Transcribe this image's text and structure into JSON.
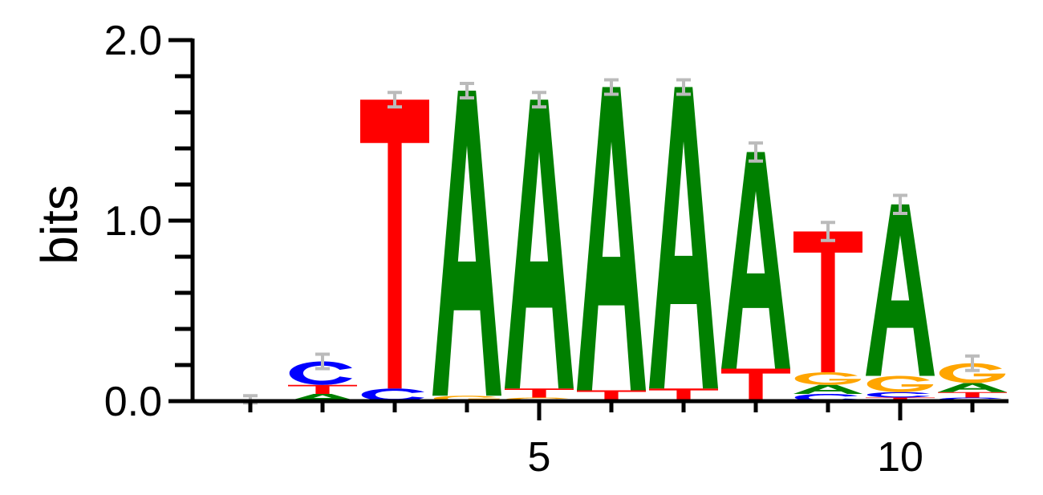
{
  "chart_data": {
    "type": "sequence-logo",
    "ylabel": "bits",
    "ylim": [
      0,
      2.0
    ],
    "y_ticks": [
      0.0,
      1.0,
      2.0
    ],
    "y_tick_labels": [
      "0.0",
      "1.0",
      "2.0"
    ],
    "x_range": [
      1,
      11
    ],
    "x_ticks": [
      5,
      10
    ],
    "x_tick_labels": [
      "5",
      "10"
    ],
    "x_minor_ticks": [
      1,
      2,
      3,
      4,
      5,
      6,
      7,
      8,
      9,
      10,
      11
    ],
    "colors": {
      "A": "#008000",
      "C": "#0000ff",
      "G": "#ffa500",
      "T": "#ff0000",
      "error_bar": "#bbbbbb"
    },
    "positions": [
      {
        "pos": 1,
        "letters": [
          {
            "base": "T",
            "height": 0.01
          }
        ],
        "error": 0.02
      },
      {
        "pos": 2,
        "letters": [
          {
            "base": "A",
            "height": 0.04
          },
          {
            "base": "T",
            "height": 0.05
          },
          {
            "base": "C",
            "height": 0.13
          }
        ],
        "error": 0.04
      },
      {
        "pos": 3,
        "letters": [
          {
            "base": "C",
            "height": 0.07
          },
          {
            "base": "T",
            "height": 1.6
          }
        ],
        "error": 0.04
      },
      {
        "pos": 4,
        "letters": [
          {
            "base": "G",
            "height": 0.03
          },
          {
            "base": "A",
            "height": 1.69
          }
        ],
        "error": 0.04
      },
      {
        "pos": 5,
        "letters": [
          {
            "base": "G",
            "height": 0.02
          },
          {
            "base": "T",
            "height": 0.05
          },
          {
            "base": "A",
            "height": 1.6
          }
        ],
        "error": 0.04
      },
      {
        "pos": 6,
        "letters": [
          {
            "base": "T",
            "height": 0.06
          },
          {
            "base": "A",
            "height": 1.68
          }
        ],
        "error": 0.04
      },
      {
        "pos": 7,
        "letters": [
          {
            "base": "T",
            "height": 0.07
          },
          {
            "base": "A",
            "height": 1.67
          }
        ],
        "error": 0.04
      },
      {
        "pos": 8,
        "letters": [
          {
            "base": "T",
            "height": 0.18
          },
          {
            "base": "A",
            "height": 1.2
          }
        ],
        "error": 0.05
      },
      {
        "pos": 9,
        "letters": [
          {
            "base": "C",
            "height": 0.04
          },
          {
            "base": "A",
            "height": 0.05
          },
          {
            "base": "G",
            "height": 0.07
          },
          {
            "base": "T",
            "height": 0.78
          }
        ],
        "error": 0.05
      },
      {
        "pos": 10,
        "letters": [
          {
            "base": "T",
            "height": 0.02
          },
          {
            "base": "C",
            "height": 0.03
          },
          {
            "base": "G",
            "height": 0.09
          },
          {
            "base": "A",
            "height": 0.95
          }
        ],
        "error": 0.05
      },
      {
        "pos": 11,
        "letters": [
          {
            "base": "C",
            "height": 0.02
          },
          {
            "base": "T",
            "height": 0.03
          },
          {
            "base": "A",
            "height": 0.05
          },
          {
            "base": "G",
            "height": 0.11
          }
        ],
        "error": 0.04
      }
    ]
  }
}
